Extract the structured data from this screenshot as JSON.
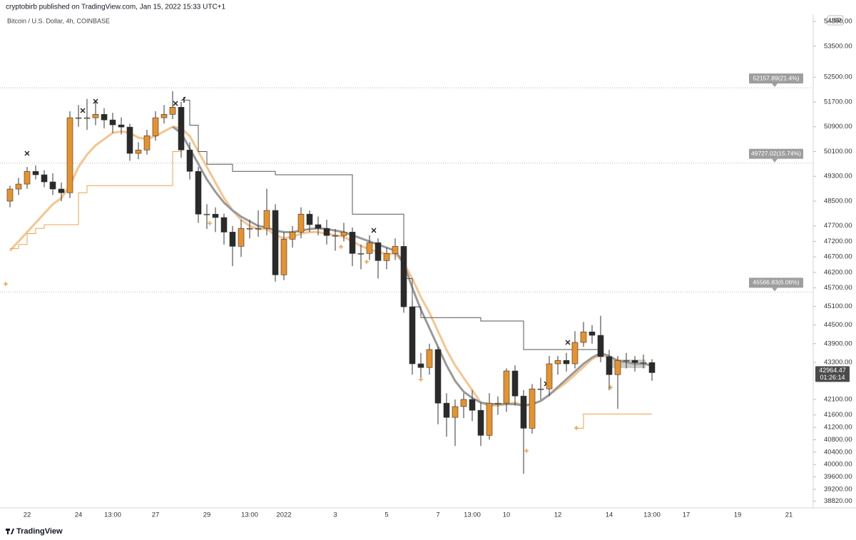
{
  "header": "cryptobirb published on TradingView.com, Jan 15, 2022 15:33 UTC+1",
  "footer": "TradingView",
  "chart_data": {
    "type": "candlestick",
    "title": "Bitcoin / U.S. Dollar, 4h, COINBASE",
    "currency": "USD",
    "up_color": "#e8922c",
    "down_color": "#2a2a2a",
    "ylim": [
      38600,
      54530
    ],
    "yticks": [
      {
        "value": 54300,
        "label": "54300.00"
      },
      {
        "value": 53500,
        "label": "53500.00"
      },
      {
        "value": 52500,
        "label": "52500.00"
      },
      {
        "value": 51700,
        "label": "51700.00"
      },
      {
        "value": 50900,
        "label": "50900.00"
      },
      {
        "value": 50100,
        "label": "50100.00"
      },
      {
        "value": 49300,
        "label": "49300.00"
      },
      {
        "value": 48500,
        "label": "48500.00"
      },
      {
        "value": 47700,
        "label": "47700.00"
      },
      {
        "value": 47200,
        "label": "47200.00"
      },
      {
        "value": 46700,
        "label": "46700.00"
      },
      {
        "value": 46200,
        "label": "46200.00"
      },
      {
        "value": 45700,
        "label": "45700.00"
      },
      {
        "value": 45100,
        "label": "45100.00"
      },
      {
        "value": 44500,
        "label": "44500.00"
      },
      {
        "value": 43900,
        "label": "43900.00"
      },
      {
        "value": 43300,
        "label": "43300.00"
      },
      {
        "value": 42100,
        "label": "42100.00"
      },
      {
        "value": 41600,
        "label": "41600.00"
      },
      {
        "value": 41200,
        "label": "41200.00"
      },
      {
        "value": 40800,
        "label": "40800.00"
      },
      {
        "value": 40400,
        "label": "40400.00"
      },
      {
        "value": 40000,
        "label": "40000.00"
      },
      {
        "value": 39600,
        "label": "39600.00"
      },
      {
        "value": 39200,
        "label": "39200.00"
      },
      {
        "value": 38820,
        "label": "38820.00"
      }
    ],
    "categories": [
      null,
      null,
      "22",
      null,
      null,
      null,
      null,
      null,
      "24",
      null,
      null,
      null,
      "13:00",
      null,
      null,
      null,
      null,
      "27",
      null,
      null,
      null,
      null,
      null,
      "29",
      null,
      null,
      null,
      null,
      "13:00",
      null,
      null,
      null,
      "2022",
      null,
      null,
      null,
      null,
      null,
      "3",
      null,
      null,
      null,
      null,
      null,
      "5",
      null,
      null,
      null,
      null,
      null,
      "7",
      null,
      null,
      null,
      "13:00",
      null,
      null,
      null,
      "10",
      null,
      null,
      null,
      null,
      null,
      "12",
      null,
      null,
      null,
      null,
      null,
      "14",
      null,
      null,
      null,
      null,
      "13:00",
      null,
      null,
      null,
      "17",
      null,
      null,
      null,
      null,
      null,
      "19",
      null,
      null,
      null,
      null,
      null,
      "21"
    ],
    "ohlc": [
      [
        48500,
        49000,
        48300,
        48890
      ],
      [
        48890,
        49250,
        48700,
        49050
      ],
      [
        49050,
        49600,
        48900,
        49460
      ],
      [
        49460,
        49650,
        49200,
        49350
      ],
      [
        49350,
        49500,
        48950,
        49120
      ],
      [
        49120,
        49400,
        48700,
        48890
      ],
      [
        48890,
        49100,
        48500,
        48770
      ],
      [
        48770,
        51400,
        48600,
        51190
      ],
      [
        51190,
        51600,
        50900,
        51190
      ],
      [
        51190,
        51800,
        50800,
        51190
      ],
      [
        51190,
        51700,
        50950,
        51300
      ],
      [
        51300,
        51500,
        50850,
        51120
      ],
      [
        51120,
        51350,
        50700,
        50960
      ],
      [
        50960,
        51200,
        50650,
        50890
      ],
      [
        50890,
        51000,
        49800,
        50040
      ],
      [
        50040,
        50400,
        49850,
        50150
      ],
      [
        50150,
        50800,
        50000,
        50610
      ],
      [
        50610,
        51400,
        50450,
        51190
      ],
      [
        51190,
        51600,
        51000,
        51300
      ],
      [
        51300,
        52050,
        51150,
        51530
      ],
      [
        51530,
        51700,
        49900,
        50150
      ],
      [
        50150,
        50400,
        49200,
        49460
      ],
      [
        49460,
        49600,
        47800,
        48080
      ],
      [
        48080,
        48400,
        47600,
        48080
      ],
      [
        48080,
        48300,
        47500,
        47970
      ],
      [
        47970,
        48100,
        47100,
        47500
      ],
      [
        47500,
        47700,
        46400,
        47040
      ],
      [
        47040,
        47900,
        46700,
        47620
      ],
      [
        47620,
        47900,
        47300,
        47620
      ],
      [
        47620,
        48200,
        47350,
        47620
      ],
      [
        47620,
        48900,
        47400,
        48200
      ],
      [
        48200,
        48400,
        45900,
        46120
      ],
      [
        46120,
        47500,
        45950,
        47270
      ],
      [
        47270,
        47700,
        47000,
        47500
      ],
      [
        47500,
        48300,
        47300,
        48080
      ],
      [
        48080,
        48200,
        47500,
        47740
      ],
      [
        47740,
        48000,
        47400,
        47620
      ],
      [
        47620,
        47900,
        47100,
        47390
      ],
      [
        47390,
        47600,
        46900,
        47390
      ],
      [
        47390,
        47800,
        47200,
        47500
      ],
      [
        47500,
        47650,
        46400,
        46810
      ],
      [
        46810,
        47100,
        46300,
        46810
      ],
      [
        46810,
        47400,
        46600,
        47160
      ],
      [
        47160,
        47300,
        46000,
        46580
      ],
      [
        46580,
        47000,
        46300,
        46810
      ],
      [
        46810,
        47300,
        46600,
        47040
      ],
      [
        47040,
        47200,
        44900,
        45090
      ],
      [
        45090,
        45300,
        42900,
        43250
      ],
      [
        43250,
        43600,
        42800,
        43130
      ],
      [
        43130,
        43900,
        42900,
        43710
      ],
      [
        43710,
        43800,
        41300,
        41980
      ],
      [
        41980,
        42300,
        40900,
        41520
      ],
      [
        41520,
        42100,
        40600,
        41870
      ],
      [
        41870,
        42300,
        41500,
        42100
      ],
      [
        42100,
        42400,
        41400,
        41750
      ],
      [
        41750,
        42000,
        40600,
        40940
      ],
      [
        40940,
        42300,
        40800,
        41980
      ],
      [
        41980,
        42200,
        41600,
        41980
      ],
      [
        41980,
        43100,
        41700,
        43020
      ],
      [
        43020,
        43200,
        41900,
        42210
      ],
      [
        42210,
        42400,
        39700,
        41170
      ],
      [
        41170,
        42600,
        41000,
        42440
      ],
      [
        42440,
        42800,
        42100,
        42440
      ],
      [
        42440,
        43500,
        42200,
        43250
      ],
      [
        43250,
        43500,
        42900,
        43360
      ],
      [
        43360,
        43600,
        43000,
        43250
      ],
      [
        43250,
        44300,
        43100,
        43940
      ],
      [
        43940,
        44600,
        43800,
        44280
      ],
      [
        44280,
        44500,
        43900,
        44170
      ],
      [
        44170,
        44800,
        43300,
        43480
      ],
      [
        43480,
        43700,
        42400,
        42900
      ],
      [
        42900,
        43500,
        41800,
        43360
      ],
      [
        43360,
        43600,
        43100,
        43360
      ],
      [
        43360,
        43500,
        43000,
        43290
      ],
      [
        43290,
        43550,
        43100,
        43290
      ],
      [
        43290,
        43400,
        42700,
        42964.47
      ],
      null,
      null,
      null,
      null,
      null,
      null,
      null,
      null,
      null,
      null,
      null,
      null,
      null,
      null,
      null,
      null
    ],
    "series": [
      {
        "color": "#f7c48e",
        "width": 3,
        "values": [
          46900,
          47200,
          47500,
          47800,
          48100,
          48400,
          48600,
          49000,
          49600,
          50000,
          50300,
          50500,
          50700,
          50750,
          50700,
          50550,
          50500,
          50600,
          50750,
          50900,
          50850,
          50600,
          50100,
          49600,
          49100,
          48600,
          48200,
          47900,
          47700,
          47600,
          47600,
          47400,
          47300,
          47350,
          47450,
          47500,
          47500,
          47450,
          47400,
          47350,
          47200,
          47050,
          46950,
          46850,
          46800,
          46800,
          46500,
          46000,
          45400,
          44900,
          44300,
          43700,
          43200,
          42800,
          42400,
          42000,
          41900,
          41900,
          41950,
          42000,
          41900,
          41950,
          42050,
          42250,
          42450,
          42650,
          42900,
          43150,
          43400,
          43550,
          43450,
          43350,
          43300,
          43250,
          43250,
          43200,
          null,
          null,
          null,
          null,
          null,
          null,
          null,
          null,
          null,
          null,
          null,
          null,
          null,
          null,
          null,
          null
        ]
      },
      {
        "color": "#999999",
        "width": 3,
        "values": [
          null,
          null,
          null,
          null,
          null,
          null,
          null,
          null,
          null,
          null,
          null,
          null,
          null,
          null,
          null,
          null,
          null,
          null,
          null,
          50900,
          50700,
          50200,
          49700,
          49200,
          48800,
          48450,
          48200,
          48000,
          47850,
          47700,
          47650,
          47550,
          47500,
          47500,
          47550,
          47600,
          47620,
          47600,
          47550,
          47500,
          47400,
          47300,
          47200,
          47100,
          47000,
          46900,
          46500,
          45700,
          45000,
          44400,
          43800,
          43200,
          42700,
          42350,
          42150,
          42000,
          41950,
          41950,
          41950,
          41950,
          41900,
          41950,
          42050,
          42250,
          42500,
          42750,
          43000,
          43250,
          43450,
          43600,
          43500,
          43350,
          43300,
          43250,
          43250,
          43200,
          null,
          null,
          null,
          null,
          null,
          null,
          null,
          null,
          null,
          null,
          null,
          null,
          null,
          null,
          null,
          null
        ]
      },
      {
        "color": "#555555",
        "width": 1,
        "step": true,
        "values": [
          null,
          null,
          null,
          null,
          null,
          null,
          null,
          null,
          null,
          null,
          null,
          null,
          null,
          null,
          null,
          null,
          null,
          null,
          null,
          null,
          51760,
          50950,
          50100,
          49690,
          49690,
          49690,
          49460,
          49460,
          49460,
          49460,
          49460,
          49350,
          49350,
          49350,
          49350,
          49350,
          49350,
          49350,
          49350,
          49350,
          48080,
          48080,
          48080,
          48080,
          48080,
          48080,
          46000,
          45090,
          44740,
          44740,
          44740,
          44740,
          44740,
          44740,
          44740,
          44630,
          44630,
          44630,
          44630,
          44630,
          43710,
          43710,
          43710,
          43710,
          43710,
          43710,
          43710,
          43710,
          43710,
          43710,
          null,
          null,
          null,
          null,
          null,
          null,
          null,
          null,
          null,
          null,
          null,
          null,
          null,
          null,
          null,
          null,
          null,
          null,
          null,
          null,
          null,
          null
        ]
      },
      {
        "color": "#f0a04b",
        "width": 1,
        "step": true,
        "values": [
          46970,
          47100,
          47450,
          47620,
          47740,
          47740,
          47740,
          47740,
          48770,
          49000,
          49000,
          49000,
          49000,
          49000,
          49000,
          49000,
          49000,
          49000,
          49000,
          50100,
          50100,
          null,
          null,
          null,
          null,
          null,
          null,
          null,
          null,
          null,
          null,
          null,
          null,
          null,
          null,
          null,
          null,
          null,
          null,
          null,
          null,
          null,
          null,
          null,
          null,
          null,
          null,
          null,
          null,
          null,
          null,
          null,
          null,
          null,
          null,
          null,
          null,
          null,
          null,
          null,
          null,
          null,
          null,
          null,
          null,
          null,
          41170,
          41630,
          41630,
          41630,
          41630,
          41630,
          41630,
          41630,
          41630,
          41630,
          null,
          null,
          null,
          null,
          null,
          null,
          null,
          null,
          null,
          null,
          null,
          null,
          null,
          null,
          null,
          null
        ]
      }
    ],
    "levels": [
      {
        "value": 52157.89,
        "label": "52157.89(21.4%)"
      },
      {
        "value": 49727.02,
        "label": "49727.02(15.74%)"
      },
      {
        "value": 45566.83,
        "label": "45566.83(6.06%)"
      }
    ],
    "last_price": 42964.47,
    "countdown": "01:26:14"
  }
}
